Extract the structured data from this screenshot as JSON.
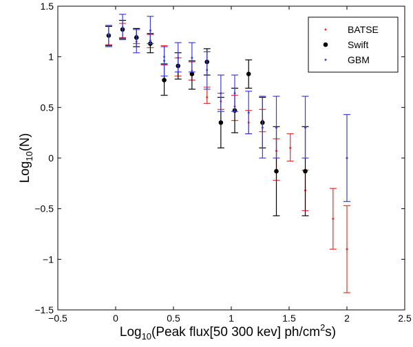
{
  "chart_data": {
    "type": "scatter",
    "title": "",
    "xlabel": {
      "prefix": "Log",
      "sub": "10",
      "main": "(Peak flux[50 300 kev] ph/cm",
      "sup": "2",
      "tail": "s)"
    },
    "ylabel": {
      "prefix": "Log",
      "sub": "10",
      "main": "(N)"
    },
    "xlim": [
      -0.5,
      2.5
    ],
    "ylim": [
      -1.5,
      1.5
    ],
    "xticks": [
      -0.5,
      0,
      0.5,
      1,
      1.5,
      2,
      2.5
    ],
    "xtick_labels": [
      "−0.5",
      "0",
      "0.5",
      "1",
      "1.5",
      "2",
      "2.5"
    ],
    "yticks": [
      -1.5,
      -1,
      -0.5,
      0,
      0.5,
      1,
      1.5
    ],
    "ytick_labels": [
      "−1.5",
      "−1",
      "−0.5",
      "0",
      "0.5",
      "1",
      "1.5"
    ],
    "grid": false,
    "legend_position": "top-right",
    "series": [
      {
        "name": "BATSE",
        "color": "#e8312a",
        "marker": "dot",
        "points": [
          {
            "x": -0.06,
            "y": 1.22,
            "lo": 1.12,
            "hi": 1.31
          },
          {
            "x": 0.06,
            "y": 1.26,
            "lo": 1.19,
            "hi": 1.33
          },
          {
            "x": 0.18,
            "y": 1.21,
            "lo": 1.13,
            "hi": 1.27
          },
          {
            "x": 0.3,
            "y": 1.16,
            "lo": 1.09,
            "hi": 1.22
          },
          {
            "x": 0.42,
            "y": 1.0,
            "lo": 0.92,
            "hi": 1.11
          },
          {
            "x": 0.54,
            "y": 0.9,
            "lo": 0.81,
            "hi": 0.99
          },
          {
            "x": 0.66,
            "y": 0.86,
            "lo": 0.77,
            "hi": 0.95
          },
          {
            "x": 0.79,
            "y": 0.6,
            "lo": 0.54,
            "hi": 0.7
          },
          {
            "x": 0.91,
            "y": 0.56,
            "lo": 0.48,
            "hi": 0.64
          },
          {
            "x": 1.03,
            "y": 0.51,
            "lo": 0.37,
            "hi": 0.62
          },
          {
            "x": 1.15,
            "y": 0.35,
            "lo": 0.24,
            "hi": 0.47
          },
          {
            "x": 1.27,
            "y": 0.37,
            "lo": 0.26,
            "hi": 0.48
          },
          {
            "x": 1.39,
            "y": 0.07,
            "lo": -0.22,
            "hi": 0.19
          },
          {
            "x": 1.51,
            "y": 0.1,
            "lo": -0.03,
            "hi": 0.24
          },
          {
            "x": 1.64,
            "y": -0.32,
            "lo": -0.52,
            "hi": -0.12
          },
          {
            "x": 1.88,
            "y": -0.6,
            "lo": -0.9,
            "hi": -0.3
          },
          {
            "x": 2.0,
            "y": -0.9,
            "lo": -1.33,
            "hi": -0.47
          }
        ]
      },
      {
        "name": "Swift",
        "color": "#000000",
        "marker": "circle",
        "points": [
          {
            "x": -0.06,
            "y": 1.21,
            "lo": 1.11,
            "hi": 1.3
          },
          {
            "x": 0.06,
            "y": 1.27,
            "lo": 1.18,
            "hi": 1.36
          },
          {
            "x": 0.18,
            "y": 1.19,
            "lo": 1.1,
            "hi": 1.28
          },
          {
            "x": 0.3,
            "y": 1.13,
            "lo": 1.04,
            "hi": 1.23
          },
          {
            "x": 0.42,
            "y": 0.77,
            "lo": 0.62,
            "hi": 0.93
          },
          {
            "x": 0.54,
            "y": 0.91,
            "lo": 0.78,
            "hi": 1.04
          },
          {
            "x": 0.66,
            "y": 0.83,
            "lo": 0.68,
            "hi": 0.96
          },
          {
            "x": 0.79,
            "y": 0.95,
            "lo": 0.82,
            "hi": 1.08
          },
          {
            "x": 0.91,
            "y": 0.35,
            "lo": 0.1,
            "hi": 0.6
          },
          {
            "x": 1.03,
            "y": 0.47,
            "lo": 0.25,
            "hi": 0.69
          },
          {
            "x": 1.15,
            "y": 0.83,
            "lo": 0.69,
            "hi": 0.97
          },
          {
            "x": 1.27,
            "y": 0.35,
            "lo": 0.1,
            "hi": 0.6
          },
          {
            "x": 1.39,
            "y": -0.13,
            "lo": -0.57,
            "hi": 0.31
          },
          {
            "x": 1.64,
            "y": -0.13,
            "lo": -0.57,
            "hi": 0.31
          }
        ]
      },
      {
        "name": "GBM",
        "color": "#3a3fd4",
        "marker": "dot",
        "points": [
          {
            "x": -0.06,
            "y": 1.22,
            "lo": 1.1,
            "hi": 1.31
          },
          {
            "x": 0.06,
            "y": 1.29,
            "lo": 1.17,
            "hi": 1.42
          },
          {
            "x": 0.18,
            "y": 1.15,
            "lo": 1.04,
            "hi": 1.27
          },
          {
            "x": 0.3,
            "y": 1.26,
            "lo": 1.13,
            "hi": 1.4
          },
          {
            "x": 0.42,
            "y": 0.96,
            "lo": 0.81,
            "hi": 1.1
          },
          {
            "x": 0.54,
            "y": 0.99,
            "lo": 0.85,
            "hi": 1.14
          },
          {
            "x": 0.66,
            "y": 0.99,
            "lo": 0.85,
            "hi": 1.14
          },
          {
            "x": 0.79,
            "y": 0.87,
            "lo": 0.68,
            "hi": 1.05
          },
          {
            "x": 0.91,
            "y": 0.64,
            "lo": 0.46,
            "hi": 0.82
          },
          {
            "x": 1.03,
            "y": 0.64,
            "lo": 0.46,
            "hi": 0.82
          },
          {
            "x": 1.15,
            "y": 0.45,
            "lo": 0.24,
            "hi": 0.66
          },
          {
            "x": 1.27,
            "y": 0.3,
            "lo": 0.0,
            "hi": 0.61
          },
          {
            "x": 1.39,
            "y": 0.3,
            "lo": 0.0,
            "hi": 0.61
          },
          {
            "x": 1.64,
            "y": 0.3,
            "lo": 0.0,
            "hi": 0.61
          },
          {
            "x": 2.0,
            "y": 0.0,
            "lo": -0.43,
            "hi": 0.43
          }
        ]
      }
    ]
  }
}
